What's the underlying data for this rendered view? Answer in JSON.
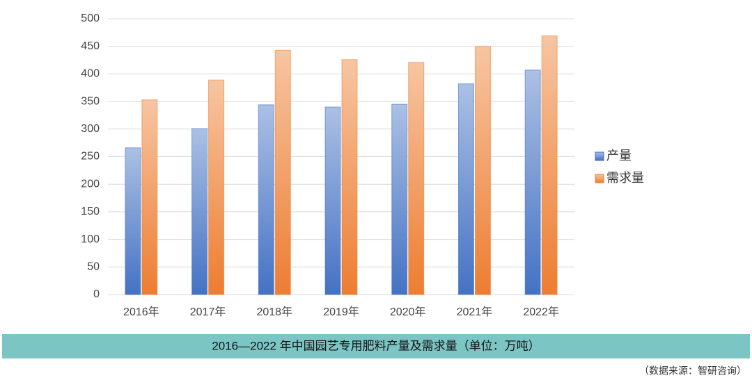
{
  "chart_data": {
    "type": "bar",
    "title": "2016—2022 年中国园艺专用肥料产量及需求量（单位：万吨）",
    "source": "（数据来源：智研咨询）",
    "categories": [
      "2016年",
      "2017年",
      "2018年",
      "2019年",
      "2020年",
      "2021年",
      "2022年"
    ],
    "series": [
      {
        "name": "产量",
        "color": "#4472c4",
        "values": [
          266,
          301,
          344,
          340,
          345,
          382,
          407
        ]
      },
      {
        "name": "需求量",
        "color": "#ed7d31",
        "values": [
          353,
          389,
          443,
          426,
          421,
          450,
          469
        ]
      }
    ],
    "ylim": [
      0,
      500
    ],
    "yticks": [
      0,
      50,
      100,
      150,
      200,
      250,
      300,
      350,
      400,
      450,
      500
    ],
    "grid": true,
    "legend": "right"
  }
}
